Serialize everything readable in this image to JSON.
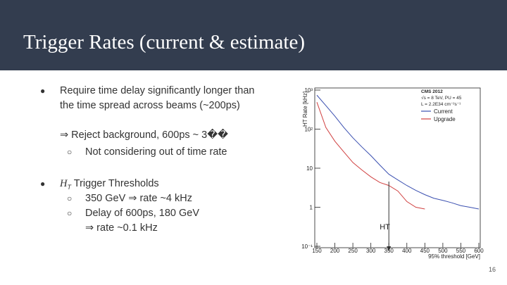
{
  "header": {
    "title": "Trigger Rates (current & estimate)"
  },
  "bullets": [
    {
      "text": "Require time delay significantly longer than the time spread across beams (~200ps)",
      "continuation": "⇒ Reject background, 600ps ~ 3��",
      "sub": [
        "Not considering out of time rate"
      ]
    },
    {
      "symbol": "H",
      "subscript": "T",
      "text": "Trigger Thresholds",
      "sub": [
        "350 GeV ⇒ rate ~4 kHz",
        "Delay of 600ps, 180 GeV"
      ],
      "sub_continuation": "⇒ rate ~0.1 kHz"
    }
  ],
  "page_number": "16",
  "chart_data": {
    "type": "line",
    "log_y": true,
    "ylabel": "HT Rate [kHz]",
    "xlabel": "95% threshold [GeV]",
    "x": [
      150,
      175,
      200,
      225,
      250,
      275,
      300,
      325,
      350,
      375,
      400,
      425,
      450,
      475,
      500,
      525,
      550,
      575,
      600
    ],
    "series": [
      {
        "name": "Current",
        "color": "#3a4fb0",
        "values": [
          740,
          400,
          215,
          110,
          60,
          35,
          21,
          12,
          7,
          5,
          3.6,
          2.7,
          2.1,
          1.7,
          1.5,
          1.3,
          1.1,
          1.0,
          0.9
        ]
      },
      {
        "name": "Upgrade",
        "color": "#d04040",
        "values": [
          490,
          110,
          49,
          26,
          14,
          9,
          6,
          4.3,
          3.6,
          2.6,
          1.4,
          1.0,
          0.9,
          null,
          null,
          null,
          null,
          null,
          null
        ]
      }
    ],
    "xlim": [
      150,
      600
    ],
    "xticks": [
      150,
      200,
      250,
      300,
      350,
      400,
      450,
      500,
      550,
      600
    ],
    "ylim": [
      0.1,
      1000
    ],
    "yticks": [
      {
        "value": 0.1,
        "label": "10⁻¹"
      },
      1,
      10,
      {
        "value": 100,
        "label": "10²"
      },
      {
        "value": 1000,
        "label": "10³"
      }
    ],
    "legend": "upper right",
    "annotations": [
      "CMS 2012",
      "√s = 8 TeV, PU = 45",
      "L = 2.2E34 cm⁻²s⁻¹"
    ],
    "marker": {
      "text": "HT",
      "x": 350
    }
  }
}
